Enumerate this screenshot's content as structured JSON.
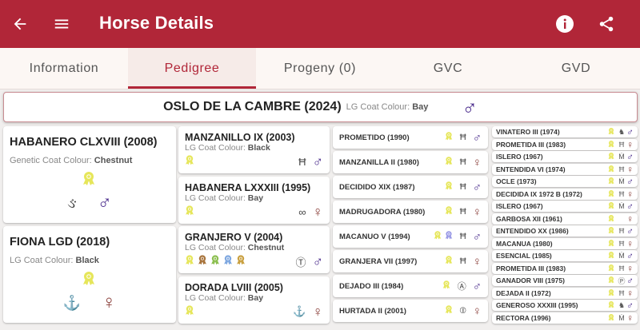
{
  "header": {
    "title": "Horse Details",
    "back_icon": "arrow-left-icon",
    "menu_icon": "menu-icon",
    "info_icon": "info-icon",
    "share_icon": "share-icon"
  },
  "tabs": [
    {
      "label": "Information"
    },
    {
      "label": "Pedigree",
      "active": true
    },
    {
      "label": "Progeny (0)"
    },
    {
      "label": "GVC"
    },
    {
      "label": "GVD"
    }
  ],
  "colors": {
    "brand": "#b12638",
    "male": "#4a2b8c",
    "female": "#8a3f3a"
  },
  "subject": {
    "name": "OSLO DE LA CAMBRE (2024)",
    "coat_label": "LG Coat Colour:",
    "coat": "Bay",
    "sex": "male"
  },
  "parents": [
    {
      "name": "HABANERO CLXVIII (2008)",
      "coat_label": "Genetic Coat Colour:",
      "coat": "Chestnut",
      "awards": [
        "#e6e65a"
      ],
      "mark": "ear-mark",
      "sex": "male"
    },
    {
      "name": "FIONA LGD (2018)",
      "coat_label": "LG Coat Colour:",
      "coat": "Black",
      "awards": [
        "#e6e65a"
      ],
      "mark": "anchor-mark",
      "sex": "female"
    }
  ],
  "grandparents": [
    {
      "name": "MANZANILLO IX (2003)",
      "coat_label": "LG Coat Colour:",
      "coat": "Black",
      "awards": [
        "#e6e65a"
      ],
      "mark": "ladder-mark",
      "sex": "male"
    },
    {
      "name": "HABANERA LXXXIII (1995)",
      "coat_label": "LG Coat Colour:",
      "coat": "Bay",
      "awards": [
        "#e6e65a"
      ],
      "mark": "rings-mark",
      "sex": "female"
    },
    {
      "name": "GRANJERO V (2004)",
      "coat_label": "LG Coat Colour:",
      "coat": "Chestnut",
      "awards": [
        "#e6e65a",
        "#a8743c",
        "#8cbf50",
        "#7fa8e0",
        "#c9a040"
      ],
      "mark": "t-circle-mark",
      "sex": "male"
    },
    {
      "name": "DORADA LVIII (2005)",
      "coat_label": "LG Coat Colour:",
      "coat": "Bay",
      "awards": [
        "#e6e65a"
      ],
      "mark": "anchor-mark",
      "sex": "female"
    }
  ],
  "great_grandparents": [
    {
      "name": "PROMETIDO (1990)",
      "awards": [
        "#e6e65a"
      ],
      "mark": "ladder-mark",
      "sex": "male"
    },
    {
      "name": "MANZANILLA II (1980)",
      "awards": [
        "#e6e65a"
      ],
      "mark": "ladder-mark",
      "sex": "female"
    },
    {
      "name": "DECIDIDO XIX (1987)",
      "awards": [
        "#e6e65a"
      ],
      "mark": "ladder-mark",
      "sex": "male"
    },
    {
      "name": "MADRUGADORA (1980)",
      "awards": [
        "#e6e65a"
      ],
      "mark": "ladder-mark",
      "sex": "female"
    },
    {
      "name": "MACANUO V (1994)",
      "awards": [
        "#e6e65a",
        "#9a9ae6"
      ],
      "mark": "ladder-mark",
      "sex": "male"
    },
    {
      "name": "GRANJERA VII (1997)",
      "awards": [
        "#e6e65a"
      ],
      "mark": "ladder-mark",
      "sex": "female"
    },
    {
      "name": "DEJADO III (1984)",
      "awards": [
        "#e6e65a"
      ],
      "mark": "a-circle-mark",
      "sex": "male"
    },
    {
      "name": "HURTADA II (2001)",
      "awards": [
        "#e6e65a"
      ],
      "mark": "circle-line-mark",
      "sex": "female"
    }
  ],
  "great_great_grandparents": [
    {
      "name": "VINATERO III (1974)",
      "mark": "horse-mark",
      "sex": "male"
    },
    {
      "name": "PROMETIDA III (1983)",
      "mark": "ladder-mark",
      "sex": "female"
    },
    {
      "name": "ISLERO (1967)",
      "mark": "m-mark",
      "sex": "male"
    },
    {
      "name": "ENTENDIDA VI (1974)",
      "mark": "ladder-mark",
      "sex": "female"
    },
    {
      "name": "OCLE (1973)",
      "mark": "m-mark",
      "sex": "male"
    },
    {
      "name": "DECIDIDA IX 1972 B (1972)",
      "mark": "ladder-mark",
      "sex": "female"
    },
    {
      "name": "ISLERO (1967)",
      "mark": "m-mark",
      "sex": "male"
    },
    {
      "name": "GARBOSA XII (1961)",
      "mark": "",
      "sex": "female"
    },
    {
      "name": "ENTENDIDO XX (1986)",
      "mark": "ladder-mark",
      "sex": "male"
    },
    {
      "name": "MACANUA (1980)",
      "mark": "ladder-mark",
      "sex": "female"
    },
    {
      "name": "ESENCIAL (1985)",
      "mark": "m-mark",
      "sex": "male"
    },
    {
      "name": "PROMETIDA III (1983)",
      "mark": "ladder-mark",
      "sex": "female"
    },
    {
      "name": "GANADOR VIII (1975)",
      "mark": "p-circle-mark",
      "sex": "male"
    },
    {
      "name": "DEJADA II (1972)",
      "mark": "ladder-mark",
      "sex": "female"
    },
    {
      "name": "GENEROSO XXXIII (1995)",
      "mark": "horse-mark",
      "sex": "male"
    },
    {
      "name": "RECTORA (1996)",
      "mark": "m-mark",
      "sex": "female"
    }
  ],
  "ggg_award": "#e6e65a"
}
